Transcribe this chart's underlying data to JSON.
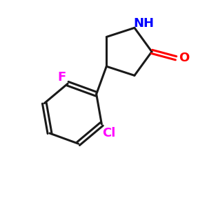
{
  "background_color": "#ffffff",
  "bond_color": "#1a1a1a",
  "nh_color": "#0000ff",
  "o_color": "#ff0000",
  "f_color": "#ff00ff",
  "cl_color": "#ff00ff",
  "bond_width": 2.2,
  "xlim": [
    0,
    10
  ],
  "ylim": [
    0,
    10
  ],
  "font_size_atom": 13,
  "font_size_nh": 13
}
